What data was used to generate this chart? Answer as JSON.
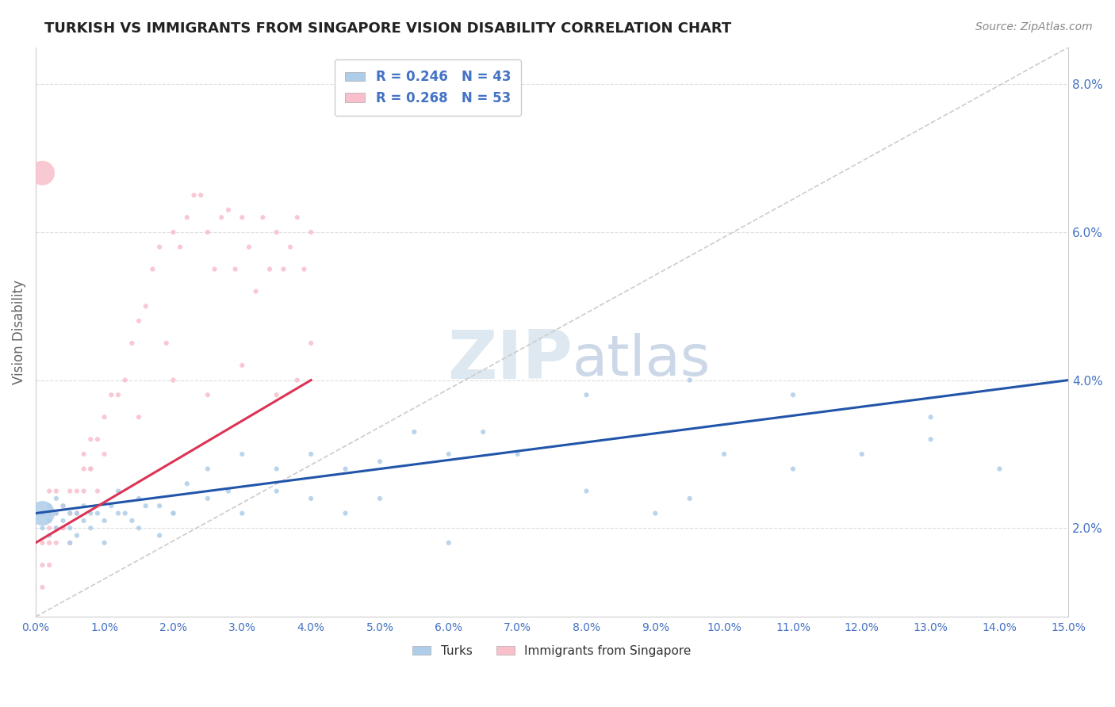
{
  "title": "TURKISH VS IMMIGRANTS FROM SINGAPORE VISION DISABILITY CORRELATION CHART",
  "source": "Source: ZipAtlas.com",
  "ylabel": "Vision Disability",
  "xlim": [
    0,
    0.15
  ],
  "ylim": [
    0.008,
    0.085
  ],
  "xticks": [
    0.0,
    0.01,
    0.02,
    0.03,
    0.04,
    0.05,
    0.06,
    0.07,
    0.08,
    0.09,
    0.1,
    0.11,
    0.12,
    0.13,
    0.14,
    0.15
  ],
  "yticks": [
    0.02,
    0.04,
    0.06,
    0.08
  ],
  "turks_R": 0.246,
  "turks_N": 43,
  "singapore_R": 0.268,
  "singapore_N": 53,
  "turks_color": "#aecde8",
  "singapore_color": "#f9c0cc",
  "turks_line_color": "#2255aa",
  "singapore_line_color": "#dd3355",
  "ref_line_color": "#cccccc",
  "background_color": "#ffffff",
  "watermark": "ZIPatlas",
  "turks_x": [
    0.001,
    0.001,
    0.002,
    0.002,
    0.002,
    0.003,
    0.003,
    0.003,
    0.004,
    0.004,
    0.005,
    0.005,
    0.006,
    0.006,
    0.007,
    0.007,
    0.008,
    0.009,
    0.01,
    0.011,
    0.012,
    0.013,
    0.014,
    0.015,
    0.016,
    0.018,
    0.02,
    0.022,
    0.025,
    0.028,
    0.03,
    0.035,
    0.04,
    0.045,
    0.05,
    0.055,
    0.06,
    0.065,
    0.08,
    0.095,
    0.11,
    0.13,
    0.001
  ],
  "turks_y": [
    0.02,
    0.022,
    0.019,
    0.023,
    0.021,
    0.02,
    0.024,
    0.022,
    0.021,
    0.023,
    0.02,
    0.022,
    0.019,
    0.022,
    0.021,
    0.023,
    0.022,
    0.022,
    0.021,
    0.023,
    0.025,
    0.022,
    0.021,
    0.024,
    0.023,
    0.023,
    0.022,
    0.026,
    0.028,
    0.025,
    0.03,
    0.028,
    0.03,
    0.028,
    0.029,
    0.033,
    0.03,
    0.033,
    0.038,
    0.04,
    0.038,
    0.035,
    0.022
  ],
  "turks_size": [
    20,
    20,
    20,
    20,
    20,
    20,
    20,
    20,
    20,
    20,
    20,
    20,
    20,
    20,
    20,
    20,
    20,
    20,
    20,
    20,
    20,
    20,
    20,
    20,
    20,
    20,
    20,
    20,
    20,
    20,
    20,
    20,
    20,
    20,
    20,
    20,
    20,
    20,
    20,
    20,
    20,
    20,
    500
  ],
  "singapore_x": [
    0.001,
    0.001,
    0.001,
    0.002,
    0.002,
    0.002,
    0.002,
    0.003,
    0.003,
    0.003,
    0.004,
    0.004,
    0.005,
    0.005,
    0.006,
    0.006,
    0.007,
    0.007,
    0.008,
    0.008,
    0.009,
    0.01,
    0.011,
    0.012,
    0.013,
    0.014,
    0.015,
    0.016,
    0.017,
    0.018,
    0.019,
    0.02,
    0.021,
    0.022,
    0.023,
    0.024,
    0.025,
    0.026,
    0.027,
    0.028,
    0.029,
    0.03,
    0.031,
    0.032,
    0.033,
    0.034,
    0.035,
    0.036,
    0.037,
    0.038,
    0.039,
    0.04,
    0.001
  ],
  "singapore_y": [
    0.015,
    0.018,
    0.022,
    0.018,
    0.02,
    0.022,
    0.025,
    0.02,
    0.022,
    0.025,
    0.02,
    0.023,
    0.022,
    0.025,
    0.022,
    0.025,
    0.028,
    0.03,
    0.028,
    0.032,
    0.032,
    0.035,
    0.038,
    0.038,
    0.04,
    0.045,
    0.048,
    0.05,
    0.055,
    0.058,
    0.045,
    0.06,
    0.058,
    0.062,
    0.065,
    0.065,
    0.06,
    0.055,
    0.062,
    0.063,
    0.055,
    0.062,
    0.058,
    0.052,
    0.062,
    0.055,
    0.06,
    0.055,
    0.058,
    0.062,
    0.055,
    0.06,
    0.068
  ],
  "singapore_size": [
    20,
    20,
    20,
    20,
    20,
    20,
    20,
    20,
    20,
    20,
    20,
    20,
    20,
    20,
    20,
    20,
    20,
    20,
    20,
    20,
    20,
    20,
    20,
    20,
    20,
    20,
    20,
    20,
    20,
    20,
    20,
    20,
    20,
    20,
    20,
    20,
    20,
    20,
    20,
    20,
    20,
    20,
    20,
    20,
    20,
    20,
    20,
    20,
    20,
    20,
    20,
    20,
    500
  ],
  "extra_turks_x": [
    0.005,
    0.008,
    0.01,
    0.012,
    0.015,
    0.018,
    0.02,
    0.025,
    0.03,
    0.035,
    0.04,
    0.045,
    0.05,
    0.06,
    0.07,
    0.08,
    0.09,
    0.095,
    0.1,
    0.11,
    0.12,
    0.13,
    0.14
  ],
  "extra_turks_y": [
    0.018,
    0.02,
    0.018,
    0.022,
    0.02,
    0.019,
    0.022,
    0.024,
    0.022,
    0.025,
    0.024,
    0.022,
    0.024,
    0.018,
    0.03,
    0.025,
    0.022,
    0.024,
    0.03,
    0.028,
    0.03,
    0.032,
    0.028
  ],
  "extra_singapore_x": [
    0.001,
    0.002,
    0.003,
    0.004,
    0.005,
    0.006,
    0.007,
    0.008,
    0.009,
    0.01,
    0.015,
    0.02,
    0.025,
    0.03,
    0.035,
    0.038,
    0.04
  ],
  "extra_singapore_y": [
    0.012,
    0.015,
    0.018,
    0.02,
    0.018,
    0.022,
    0.025,
    0.028,
    0.025,
    0.03,
    0.035,
    0.04,
    0.038,
    0.042,
    0.038,
    0.04,
    0.045
  ]
}
